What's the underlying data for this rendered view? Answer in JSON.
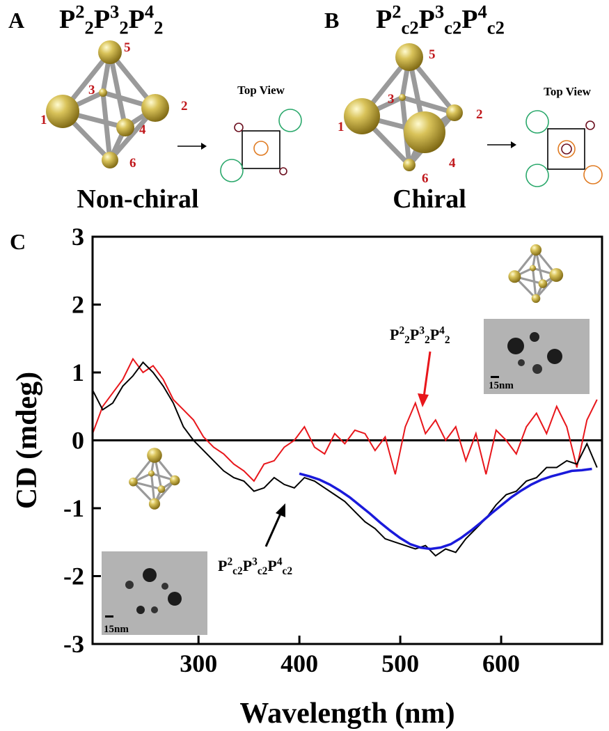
{
  "panel_a": {
    "letter": "A",
    "formula": [
      {
        "base": "P",
        "sup": "2",
        "sub": "2"
      },
      {
        "base": "P",
        "sup": "3",
        "sub": "2"
      },
      {
        "base": "P",
        "sup": "4",
        "sub": "2"
      }
    ],
    "numbers": [
      "1",
      "2",
      "3",
      "4",
      "5",
      "6"
    ],
    "top_view": "Top View",
    "caption": "Non-chiral"
  },
  "panel_b": {
    "letter": "B",
    "formula": [
      {
        "base": "P",
        "sup": "2",
        "sub": "c2"
      },
      {
        "base": "P",
        "sup": "3",
        "sub": "c2"
      },
      {
        "base": "P",
        "sup": "4",
        "sub": "c2"
      }
    ],
    "numbers": [
      "1",
      "2",
      "3",
      "4",
      "5",
      "6"
    ],
    "top_view": "Top View",
    "caption": "Chiral"
  },
  "chart_data": {
    "type": "line",
    "letter": "C",
    "x_label": "Wavelength (nm)",
    "y_label": "CD (mdeg)",
    "xlim": [
      195,
      700
    ],
    "ylim": [
      -3,
      3
    ],
    "xticks": [
      300,
      400,
      500,
      600
    ],
    "yticks": [
      -3,
      -2,
      -1,
      0,
      1,
      2,
      3
    ],
    "series": [
      {
        "color": "#e8161b",
        "x": [
          195,
          205,
          215,
          225,
          235,
          245,
          255,
          265,
          275,
          285,
          295,
          305,
          315,
          325,
          335,
          345,
          355,
          365,
          375,
          385,
          395,
          405,
          415,
          425,
          435,
          445,
          455,
          465,
          475,
          485,
          495,
          505,
          515,
          525,
          535,
          545,
          555,
          565,
          575,
          585,
          595,
          605,
          615,
          625,
          635,
          645,
          655,
          665,
          675,
          685,
          695
        ],
        "values": [
          0.1,
          0.5,
          0.7,
          0.9,
          1.2,
          1.0,
          1.1,
          0.9,
          0.6,
          0.45,
          0.3,
          0.05,
          -0.1,
          -0.2,
          -0.35,
          -0.45,
          -0.6,
          -0.35,
          -0.3,
          -0.1,
          0.0,
          0.2,
          -0.1,
          -0.2,
          0.1,
          -0.05,
          0.15,
          0.1,
          -0.15,
          0.05,
          -0.5,
          0.2,
          0.55,
          0.1,
          0.3,
          0.0,
          0.2,
          -0.3,
          0.1,
          -0.5,
          0.15,
          0.0,
          -0.2,
          0.2,
          0.4,
          0.1,
          0.5,
          0.2,
          -0.4,
          0.3,
          0.6
        ]
      },
      {
        "color": "#000000",
        "x": [
          195,
          205,
          215,
          225,
          235,
          245,
          255,
          265,
          275,
          285,
          295,
          305,
          315,
          325,
          335,
          345,
          355,
          365,
          375,
          385,
          395,
          405,
          415,
          425,
          435,
          445,
          455,
          465,
          475,
          485,
          495,
          505,
          515,
          525,
          535,
          545,
          555,
          565,
          575,
          585,
          595,
          605,
          615,
          625,
          635,
          645,
          655,
          665,
          675,
          685,
          695
        ],
        "values": [
          0.74,
          0.45,
          0.55,
          0.8,
          0.95,
          1.15,
          1.0,
          0.8,
          0.55,
          0.2,
          0.0,
          -0.15,
          -0.3,
          -0.45,
          -0.55,
          -0.6,
          -0.75,
          -0.7,
          -0.55,
          -0.65,
          -0.7,
          -0.55,
          -0.6,
          -0.7,
          -0.8,
          -0.9,
          -1.05,
          -1.2,
          -1.3,
          -1.45,
          -1.5,
          -1.55,
          -1.6,
          -1.55,
          -1.7,
          -1.6,
          -1.65,
          -1.45,
          -1.3,
          -1.15,
          -0.95,
          -0.8,
          -0.75,
          -0.6,
          -0.55,
          -0.4,
          -0.4,
          -0.3,
          -0.35,
          -0.05,
          -0.4
        ]
      },
      {
        "color": "#1a1adb",
        "x": [
          400,
          410,
          420,
          430,
          440,
          450,
          460,
          470,
          480,
          490,
          500,
          510,
          520,
          530,
          540,
          550,
          560,
          570,
          580,
          590,
          600,
          610,
          620,
          630,
          640,
          650,
          660,
          670,
          680,
          690
        ],
        "values": [
          -0.49,
          -0.53,
          -0.58,
          -0.65,
          -0.74,
          -0.84,
          -0.96,
          -1.08,
          -1.21,
          -1.33,
          -1.44,
          -1.53,
          -1.58,
          -1.6,
          -1.58,
          -1.53,
          -1.44,
          -1.33,
          -1.21,
          -1.08,
          -0.96,
          -0.84,
          -0.74,
          -0.65,
          -0.58,
          -0.53,
          -0.49,
          -0.45,
          -0.44,
          -0.42
        ]
      }
    ],
    "annotations": [
      {
        "color": "#000000",
        "label": [
          {
            "base": "P",
            "sup": "2",
            "sub": "2"
          },
          {
            "base": "P",
            "sup": "3",
            "sub": "2"
          },
          {
            "base": "P",
            "sup": "4",
            "sub": "2"
          }
        ]
      },
      {
        "color": "#000000",
        "label": [
          {
            "base": "P",
            "sup": "2",
            "sub": "c2"
          },
          {
            "base": "P",
            "sup": "3",
            "sub": "c2"
          },
          {
            "base": "P",
            "sup": "4",
            "sub": "c2"
          }
        ]
      }
    ],
    "scale_bar_labels": [
      "15nm",
      "15nm"
    ]
  }
}
